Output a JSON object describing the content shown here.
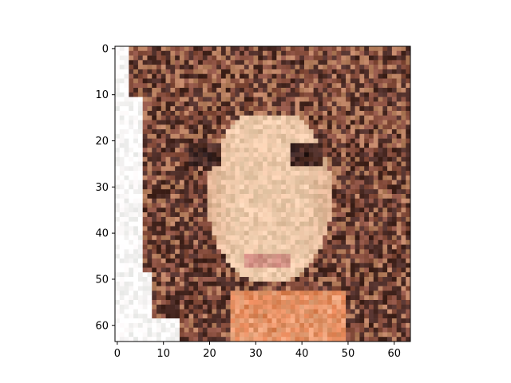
{
  "chart_data": {
    "type": "heatmap",
    "title": "",
    "xlabel": "",
    "ylabel": "",
    "image_size": [
      64,
      64
    ],
    "xlim": [
      -0.5,
      63.5
    ],
    "ylim": [
      63.5,
      -0.5
    ],
    "y_axis_inverted": true,
    "grid": false,
    "legend": "none",
    "x_ticks": [
      0,
      10,
      20,
      30,
      40,
      50,
      60
    ],
    "y_ticks": [
      0,
      10,
      20,
      30,
      40,
      50,
      60
    ],
    "x_tick_labels": [
      "0",
      "10",
      "20",
      "30",
      "40",
      "50",
      "60"
    ],
    "y_tick_labels": [
      "0",
      "10",
      "20",
      "30",
      "40",
      "50",
      "60"
    ],
    "content": "pixelated-face-portrait",
    "palette": {
      "background": "#fbf8f8",
      "hair_dark": "#4a2a24",
      "hair_mid": "#8a5040",
      "hair_light": "#b88060",
      "skin": "#f0cfb0",
      "skin_shadow": "#d8a888",
      "eye": "#2a1a1a",
      "lip": "#c88078",
      "neck_warm": "#e08050"
    }
  }
}
